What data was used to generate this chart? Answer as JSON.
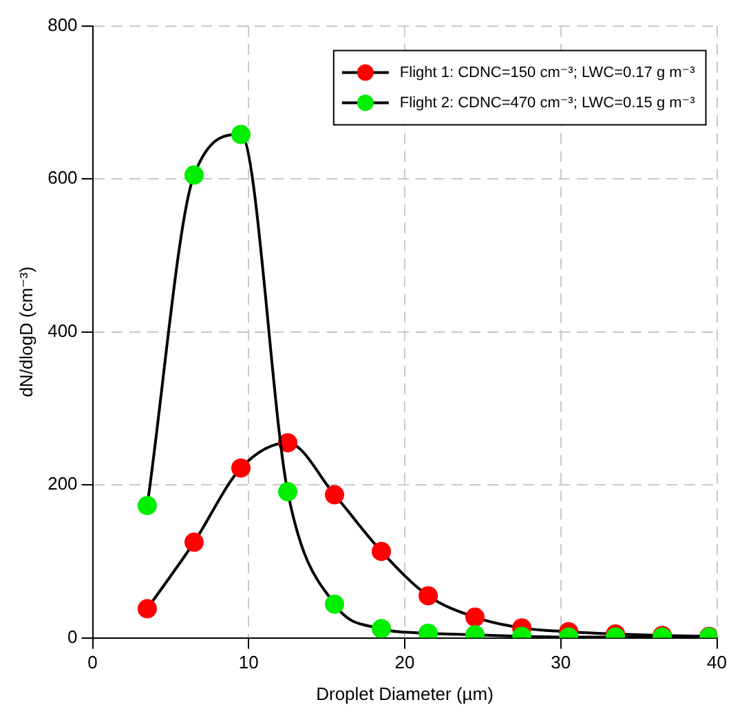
{
  "chart_data": {
    "type": "line",
    "xlabel": "Droplet Diameter (µm)",
    "ylabel": "dN/dlogD (cm⁻³)",
    "x": [
      3.5,
      6.5,
      9.5,
      12.5,
      15.5,
      18.5,
      21.5,
      24.5,
      27.5,
      30.5,
      33.5,
      36.5,
      39.5
    ],
    "series": [
      {
        "name": "Flight 1: CDNC=150 cm⁻³; LWC=0.17 g m⁻³",
        "color": "#ff0000",
        "values": [
          38,
          125,
          222,
          255,
          187,
          113,
          55,
          27,
          13,
          8,
          5,
          3,
          2
        ]
      },
      {
        "name": "Flight 2: CDNC=470 cm⁻³; LWC=0.15 g m⁻³",
        "color": "#00ee00",
        "values": [
          173,
          605,
          658,
          191,
          44,
          12,
          6,
          4,
          2,
          1,
          1,
          1,
          1
        ]
      }
    ],
    "xlim": [
      0,
      40
    ],
    "xticks": [
      0,
      10,
      20,
      30,
      40
    ],
    "ylim": [
      0,
      800
    ],
    "yticks": [
      0,
      200,
      400,
      600,
      800
    ],
    "grid": true,
    "legend": "top right",
    "marker": "circle",
    "line_style": "solid"
  }
}
